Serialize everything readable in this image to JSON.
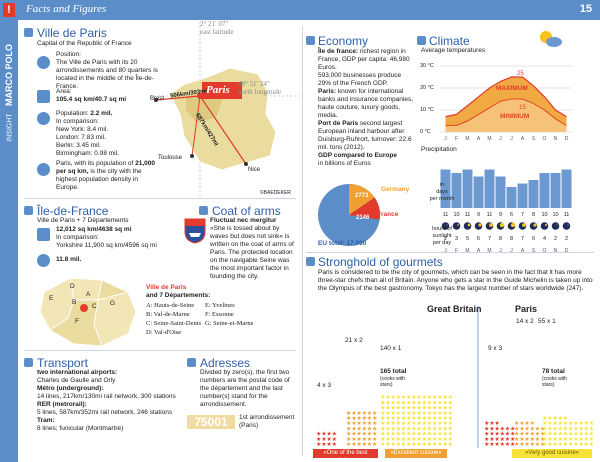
{
  "header": {
    "title": "Facts and Figures",
    "page_number": "15"
  },
  "sidebar": {
    "brand": "MARCO POLO",
    "subtitle": "INSIGHT",
    "mark": "!"
  },
  "paris": {
    "title": "Ville de Paris",
    "subtitle": "Capital of the Republic of France",
    "position_label": "Position:",
    "position_text": "The Ville de Paris with its 20 arrondissements and 80 quarters is located in the middle of the Île-de-France.",
    "area_label": "Area:",
    "area_value": "105.4 sq km/40.7 sq mi",
    "pop_label": "Population:",
    "pop_value": "2.2 mil.",
    "pop_compare": "In comparison:",
    "pop_ny": "New York: 8.4 mil.",
    "pop_london": "London: 7.83 mil.",
    "pop_berlin": "Berlin: 3.45 mil.",
    "pop_birmingham": "Birmingham: 0.98 mil.",
    "density_a": "Paris, with its population of",
    "density_b": "21,000 per sq km,",
    "density_c": " is the city with the highest population density in Europe.",
    "map_city": "Paris",
    "coord_east": "2° 21′ 07″",
    "coord_east_label": "east latitude",
    "coord_north": "48° 51′ 24″",
    "coord_north_label": "north longitude",
    "dist_brest": "506km/303mi",
    "dist_nice": "687km/427mi",
    "city_brest": "Brest",
    "city_toulouse": "Toulouse",
    "city_nice": "Nice",
    "credit": "©BAEDEKER"
  },
  "iledefrance": {
    "title": "Île-de-France",
    "subtitle": "Ville de Paris + 7 Départements",
    "area_a": "12,012 sq km/4638 sq mi",
    "area_compare": "In comparison:",
    "area_yorkshire": "Yorkshire 11,900 sq km/4596 sq mi",
    "pop": "11.8 mil.",
    "map_letters": [
      "A",
      "B",
      "C",
      "D",
      "E",
      "F",
      "G"
    ],
    "legend_title": "Ville de Paris",
    "legend_sub": "and 7 Départements:",
    "legend_left": [
      "A: Hauts-de-Seine",
      "B: Val-de-Marne",
      "C: Seine-Saint-Denis",
      "D: Val-d'Oise"
    ],
    "legend_right": [
      "E: Yvelines",
      "F: Essonne",
      "G: Seine-et-Marne"
    ]
  },
  "coat": {
    "title": "Coat of arms",
    "motto": "Fluctuat nec mergitur",
    "text": "»She is tossed about by waves but does not sink« is written on the coat of arms of Paris. The protected location on the navigable Seine was the most important factor in founding the city."
  },
  "transport": {
    "title": "Transport",
    "l1": "two international airports:",
    "l2": "Charles de Gaulle and Orly",
    "l3": "Métro (underground):",
    "l4": "14 lines, 217km/130mi rail network, 300 stations",
    "l5": "RER (metrorail):",
    "l6": "5 lines, 587km/352mi rail network, 246 stations",
    "l7": "Tram:",
    "l8": "8 lines; funicular (Montmartre)"
  },
  "adresses": {
    "title": "Adresses",
    "text": "Divided by zero(s), the first two numbers are the postal code of the département and the last number(s) stand for the arrondissement.",
    "code": "75001",
    "code_desc": "1st arrondissement (Paris)"
  },
  "economy": {
    "title": "Economy",
    "text": [
      {
        "b": "Île de france:",
        "t": " richest region in France, GDP per capita: 46,980 Euros."
      },
      {
        "b": "",
        "t": "593,000 businesses produce 29% of the French GDP."
      },
      {
        "b": "Paris:",
        "t": " known for international banks and insurance companies, haute couture, luxury goods, media."
      },
      {
        "b": "Port de Paris",
        "t": " second largest European inland harbour after Duisburg-Ruhrort, turnover: 22.6 mil. tons (2012)."
      },
      {
        "b": "GDP compared to Europe",
        "t": ""
      },
      {
        "b": "",
        "t": "in billions of Euros"
      }
    ],
    "eu_total": "EU total: 17,960",
    "germany_label": "Germany",
    "germany_value": "2773",
    "france_label": "France",
    "france_value": "2146"
  },
  "climate": {
    "title": "Climate",
    "avg_label": "Average temperatures",
    "temp_ticks": [
      "30 °C",
      "20 °C",
      "10 °C",
      "0 °C"
    ],
    "months": [
      "J",
      "F",
      "M",
      "A",
      "M",
      "J",
      "J",
      "A",
      "S",
      "O",
      "N",
      "D"
    ],
    "max_label": "MAXIMUM",
    "min_label": "MINIMUM",
    "max_peak": "25",
    "min_peak": "15",
    "max_c": [
      7,
      8,
      12,
      16,
      20,
      23,
      25,
      25,
      21,
      16,
      10,
      7
    ],
    "min_c": [
      3,
      3,
      5,
      8,
      11,
      14,
      15,
      15,
      13,
      10,
      6,
      3
    ],
    "precip_label": "Precipitation",
    "rain_days": [
      11,
      10,
      11,
      9,
      11,
      9,
      6,
      7,
      8,
      10,
      10,
      11
    ],
    "rain_axis": [
      "in",
      "days",
      "per month"
    ],
    "sun_hours": [
      2,
      3,
      5,
      6,
      7,
      8,
      8,
      7,
      6,
      4,
      2,
      2
    ],
    "sun_axis": [
      "hours of",
      "sunlight",
      "per day"
    ]
  },
  "gourmet": {
    "title": "Stronghold of gourmets",
    "text": "Paris is considered to be the city of gourmets, which can be seen in the fact that it has more three-star chefs than all of Britain. Anyone who gets a star in the Guide Michelin is taken up into the Olympus of the best gastronomy. Tokyo has the largest number of stars worldwide (247).",
    "gb_label": "Great Britain",
    "paris_label": "Paris",
    "gb_counts": [
      "4 x 3",
      "21 x 2",
      "140 x 1"
    ],
    "paris_counts": [
      "9 x 3",
      "14 x 2",
      "55 x 1"
    ],
    "gb_total": "165 total",
    "gb_total_sub": "(cooks with stars)",
    "paris_total": "78 total",
    "paris_total_sub": "(cooks with stars)",
    "cat1": "»One of the best cuisines«",
    "cat2": "»Excellent cuisine«",
    "cat3": "»Very good cuisine«"
  },
  "colors": {
    "accent": "#5b8ec8",
    "red": "#e23a2c",
    "orange": "#f0a030",
    "yellow": "#f7e23a"
  }
}
